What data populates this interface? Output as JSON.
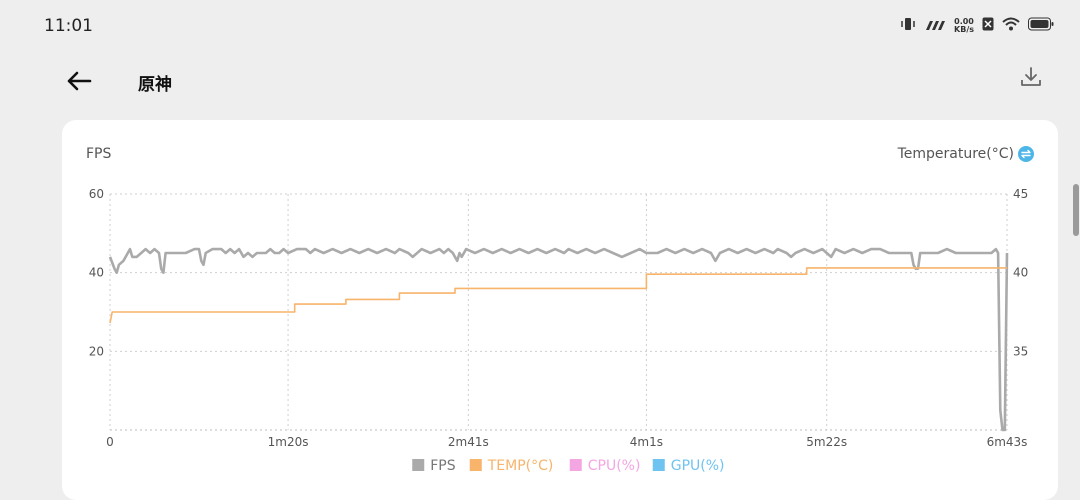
{
  "status": {
    "time": "11:01",
    "net_value": "0.00",
    "net_unit": "KB/s"
  },
  "header": {
    "title": "原神"
  },
  "chart": {
    "left_axis_label": "FPS",
    "right_axis_label": "Temperature(°C)"
  },
  "chart_data": {
    "type": "line",
    "xlabel": "",
    "ylabel": "FPS",
    "y2label": "Temperature(°C)",
    "xlim": [
      0,
      403
    ],
    "ylim": [
      0,
      60
    ],
    "y2lim": [
      30,
      45
    ],
    "x_ticks": [
      {
        "t": 0,
        "label": "0"
      },
      {
        "t": 80,
        "label": "1m20s"
      },
      {
        "t": 161,
        "label": "2m41s"
      },
      {
        "t": 241,
        "label": "4m1s"
      },
      {
        "t": 322,
        "label": "5m22s"
      },
      {
        "t": 403,
        "label": "6m43s"
      }
    ],
    "y_ticks": [
      {
        "v": 60,
        "label": "60"
      },
      {
        "v": 40,
        "label": "40"
      },
      {
        "v": 20,
        "label": "20"
      }
    ],
    "y2_ticks": [
      {
        "v": 45,
        "label": "45"
      },
      {
        "v": 40,
        "label": "40"
      },
      {
        "v": 35,
        "label": "35"
      }
    ],
    "grid": true,
    "legend_position": "bottom",
    "legend": [
      {
        "name": "FPS",
        "color": "#aaaaaa"
      },
      {
        "name": "TEMP(°C)",
        "color": "#f7b46a"
      },
      {
        "name": "CPU(%)",
        "color": "#f4a6e3"
      },
      {
        "name": "GPU(%)",
        "color": "#6fc3f0"
      }
    ],
    "series": [
      {
        "name": "FPS",
        "color": "#aaaaaa",
        "points": [
          [
            0,
            44
          ],
          [
            2,
            41
          ],
          [
            3,
            40
          ],
          [
            4,
            42
          ],
          [
            6,
            43
          ],
          [
            8,
            45
          ],
          [
            9,
            46
          ],
          [
            10,
            44
          ],
          [
            12,
            44
          ],
          [
            14,
            45
          ],
          [
            16,
            46
          ],
          [
            18,
            45
          ],
          [
            20,
            46
          ],
          [
            22,
            45
          ],
          [
            23,
            41
          ],
          [
            24,
            40
          ],
          [
            25,
            45
          ],
          [
            28,
            45
          ],
          [
            30,
            45
          ],
          [
            34,
            45
          ],
          [
            38,
            46
          ],
          [
            40,
            46
          ],
          [
            41,
            43
          ],
          [
            42,
            42
          ],
          [
            43,
            45
          ],
          [
            46,
            46
          ],
          [
            50,
            46
          ],
          [
            52,
            45
          ],
          [
            54,
            46
          ],
          [
            56,
            45
          ],
          [
            58,
            46
          ],
          [
            60,
            44
          ],
          [
            62,
            45
          ],
          [
            64,
            44
          ],
          [
            66,
            45
          ],
          [
            70,
            45
          ],
          [
            72,
            46
          ],
          [
            74,
            45
          ],
          [
            76,
            45
          ],
          [
            78,
            46
          ],
          [
            80,
            45
          ],
          [
            84,
            46
          ],
          [
            88,
            46
          ],
          [
            90,
            45
          ],
          [
            92,
            46
          ],
          [
            96,
            45
          ],
          [
            100,
            46
          ],
          [
            104,
            45
          ],
          [
            108,
            46
          ],
          [
            112,
            45
          ],
          [
            116,
            46
          ],
          [
            120,
            45
          ],
          [
            124,
            46
          ],
          [
            128,
            45
          ],
          [
            130,
            46
          ],
          [
            134,
            45
          ],
          [
            136,
            44
          ],
          [
            140,
            46
          ],
          [
            144,
            45
          ],
          [
            148,
            46
          ],
          [
            150,
            45
          ],
          [
            152,
            46
          ],
          [
            154,
            45
          ],
          [
            156,
            43
          ],
          [
            157,
            45
          ],
          [
            158,
            44
          ],
          [
            160,
            46
          ],
          [
            164,
            45
          ],
          [
            168,
            46
          ],
          [
            172,
            45
          ],
          [
            176,
            46
          ],
          [
            180,
            45
          ],
          [
            184,
            46
          ],
          [
            188,
            45
          ],
          [
            192,
            46
          ],
          [
            196,
            45
          ],
          [
            200,
            46
          ],
          [
            204,
            45
          ],
          [
            206,
            46
          ],
          [
            210,
            45
          ],
          [
            214,
            46
          ],
          [
            218,
            45
          ],
          [
            222,
            46
          ],
          [
            226,
            45
          ],
          [
            230,
            44
          ],
          [
            234,
            45
          ],
          [
            238,
            46
          ],
          [
            241,
            45
          ],
          [
            246,
            45
          ],
          [
            250,
            46
          ],
          [
            254,
            45
          ],
          [
            258,
            46
          ],
          [
            262,
            45
          ],
          [
            266,
            46
          ],
          [
            270,
            45
          ],
          [
            272,
            43
          ],
          [
            274,
            45
          ],
          [
            278,
            46
          ],
          [
            282,
            45
          ],
          [
            286,
            46
          ],
          [
            290,
            45
          ],
          [
            294,
            46
          ],
          [
            298,
            45
          ],
          [
            300,
            46
          ],
          [
            304,
            45
          ],
          [
            306,
            44
          ],
          [
            308,
            45
          ],
          [
            312,
            46
          ],
          [
            316,
            45
          ],
          [
            320,
            46
          ],
          [
            322,
            45
          ],
          [
            324,
            44
          ],
          [
            326,
            46
          ],
          [
            330,
            45
          ],
          [
            334,
            46
          ],
          [
            338,
            45
          ],
          [
            342,
            46
          ],
          [
            346,
            46
          ],
          [
            350,
            45
          ],
          [
            354,
            45
          ],
          [
            358,
            45
          ],
          [
            360,
            45
          ],
          [
            361,
            42
          ],
          [
            362,
            41
          ],
          [
            363,
            41
          ],
          [
            364,
            45
          ],
          [
            368,
            45
          ],
          [
            372,
            45
          ],
          [
            376,
            46
          ],
          [
            380,
            45
          ],
          [
            384,
            45
          ],
          [
            388,
            45
          ],
          [
            392,
            45
          ],
          [
            396,
            45
          ],
          [
            398,
            46
          ],
          [
            399,
            45
          ],
          [
            400,
            5
          ],
          [
            401,
            0
          ],
          [
            402,
            0
          ],
          [
            403,
            45
          ]
        ]
      },
      {
        "name": "TEMP(°C)",
        "color": "#f7b46a",
        "points": [
          [
            0,
            36.8
          ],
          [
            1,
            37.5
          ],
          [
            83,
            37.5
          ],
          [
            83,
            38.0
          ],
          [
            106,
            38.0
          ],
          [
            106,
            38.3
          ],
          [
            130,
            38.3
          ],
          [
            130,
            38.7
          ],
          [
            155,
            38.7
          ],
          [
            155,
            39.0
          ],
          [
            241,
            39.0
          ],
          [
            241,
            39.9
          ],
          [
            313,
            39.9
          ],
          [
            313,
            40.3
          ],
          [
            403,
            40.3
          ]
        ]
      }
    ]
  }
}
